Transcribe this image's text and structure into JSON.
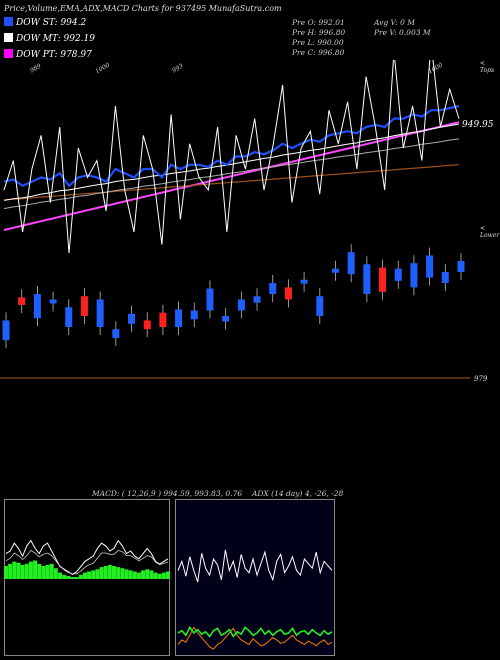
{
  "header": {
    "title": "Price,Volume,EMA,ADX,MACD Charts for 937495 MunafaSutra.com"
  },
  "indicators": [
    {
      "label": "DOW ST: 994.2",
      "color": "#1f4fff"
    },
    {
      "label": "DOW MT: 992.19",
      "color": "#ffffff"
    },
    {
      "label": "DOW PT: 978.97",
      "color": "#ff00ff"
    }
  ],
  "ohlc": {
    "open": "Pre   O: 992.01",
    "high": "Pre   H: 996.80",
    "low": "Pre   L: 990.00",
    "close": "Pre   C: 996.80",
    "avg_volume": "Avg V: 0  M",
    "prev_volume": "Pre   V: 0.003 M"
  },
  "price_axis": {
    "top_label": "< Tops",
    "price_label": "949.95",
    "lower_label": "< Lower",
    "bottom_label": "979"
  },
  "top_annotations": [
    "989",
    "1000",
    "993",
    "1000"
  ],
  "chart_data": [
    {
      "type": "line",
      "panel": "price",
      "series_close": [
        985,
        992,
        975,
        990,
        998,
        982,
        1000,
        970,
        995,
        988,
        992,
        980,
        1005,
        985,
        975,
        998,
        990,
        972,
        1003,
        978,
        996,
        988,
        985,
        1000,
        975,
        998,
        990,
        1002,
        985,
        996,
        1010,
        982,
        995,
        999,
        984,
        1004,
        996,
        1006,
        990,
        1012,
        1000,
        985,
        1018,
        995,
        1005,
        992,
        1020,
        1000,
        1009,
        1002
      ],
      "ema_short": [
        987,
        987.5,
        986,
        987,
        988,
        987.5,
        989,
        986,
        988,
        988.5,
        988,
        987,
        990,
        989,
        988,
        990,
        990,
        988,
        991,
        990,
        991,
        991,
        990.5,
        992,
        991,
        993,
        993,
        994,
        993.5,
        994.5,
        996,
        995,
        996,
        997,
        996.5,
        998,
        998.5,
        999,
        998.5,
        1000,
        1000.5,
        1000,
        1002,
        1002,
        1003,
        1002.5,
        1004,
        1004,
        1004.5,
        1005
      ],
      "ema_mid": [
        983,
        983.4,
        983.6,
        984,
        984.5,
        984.8,
        985.3,
        985.5,
        985.9,
        986.3,
        986.7,
        987,
        987.5,
        987.8,
        988,
        988.4,
        988.8,
        989,
        989.4,
        989.7,
        990,
        990.4,
        990.7,
        991.1,
        991.4,
        991.8,
        992.2,
        992.6,
        993,
        993.3,
        993.8,
        994.1,
        994.5,
        994.9,
        995.2,
        995.6,
        996,
        996.4,
        996.7,
        997.2,
        997.6,
        997.9,
        998.4,
        998.8,
        999.2,
        999.5,
        1000,
        1000.4,
        1000.8,
        1001.2
      ],
      "ema_mid2": [
        982,
        982.4,
        982.7,
        983.1,
        983.5,
        983.8,
        984.2,
        984.5,
        984.9,
        985.2,
        985.6,
        985.9,
        986.3,
        986.6,
        986.9,
        987.3,
        987.6,
        987.9,
        988.3,
        988.6,
        988.9,
        989.3,
        989.6,
        989.9,
        990.3,
        990.6,
        990.9,
        991.3,
        991.6,
        991.9,
        992.3,
        992.6,
        992.9,
        993.3,
        993.6,
        993.9,
        994.3,
        994.6,
        994.9,
        995.3,
        995.6,
        995.9,
        996.3,
        996.6,
        996.9,
        997.3,
        997.6,
        997.9,
        998.3,
        998.6
      ],
      "ema_long": [
        970,
        970.4,
        970.8,
        971.2,
        971.6,
        972,
        972.4,
        972.8,
        973.2,
        973.6,
        974,
        974.4,
        974.8,
        975.2,
        975.6,
        976,
        976.4,
        976.8,
        977.2,
        977.6,
        978,
        978.4,
        978.8,
        979.2,
        979.6,
        980,
        980.4,
        980.8,
        981.2,
        981.6,
        982,
        982.4,
        982.8,
        983.2,
        983.6,
        984,
        984.4,
        984.8,
        985.2,
        985.6,
        986,
        986.4,
        986.8,
        987.2,
        987.6,
        988,
        988.4,
        988.8,
        989.2,
        989.6
      ],
      "pt_line": [
        938,
        939,
        940,
        941,
        942,
        943,
        944,
        945,
        946,
        947,
        948,
        949,
        950,
        951,
        952,
        953,
        954,
        955,
        956,
        957,
        958,
        959,
        960,
        961,
        962,
        963,
        964,
        965,
        966,
        967,
        968,
        969,
        970,
        971,
        972,
        973,
        974,
        975,
        976,
        977,
        978,
        979,
        980,
        981,
        982,
        983,
        984,
        985,
        986,
        987
      ]
    },
    {
      "type": "bar",
      "panel": "candles",
      "bars": [
        {
          "o": 0.18,
          "c": 0.36,
          "up": true
        },
        {
          "o": 0.5,
          "c": 0.57,
          "up": false
        },
        {
          "o": 0.38,
          "c": 0.6,
          "up": true
        },
        {
          "o": 0.52,
          "c": 0.55,
          "up": true
        },
        {
          "o": 0.3,
          "c": 0.48,
          "up": true
        },
        {
          "o": 0.4,
          "c": 0.58,
          "up": false
        },
        {
          "o": 0.3,
          "c": 0.55,
          "up": true
        },
        {
          "o": 0.2,
          "c": 0.28,
          "up": true
        },
        {
          "o": 0.33,
          "c": 0.42,
          "up": true
        },
        {
          "o": 0.28,
          "c": 0.36,
          "up": false
        },
        {
          "o": 0.3,
          "c": 0.43,
          "up": false
        },
        {
          "o": 0.3,
          "c": 0.46,
          "up": true
        },
        {
          "o": 0.37,
          "c": 0.45,
          "up": true
        },
        {
          "o": 0.45,
          "c": 0.65,
          "up": true
        },
        {
          "o": 0.35,
          "c": 0.4,
          "up": true
        },
        {
          "o": 0.45,
          "c": 0.55,
          "up": true
        },
        {
          "o": 0.52,
          "c": 0.58,
          "up": true
        },
        {
          "o": 0.6,
          "c": 0.7,
          "up": true
        },
        {
          "o": 0.55,
          "c": 0.66,
          "up": false
        },
        {
          "o": 0.7,
          "c": 0.73,
          "up": true
        },
        {
          "o": 0.4,
          "c": 0.58,
          "up": true
        },
        {
          "o": 0.8,
          "c": 0.83,
          "up": true
        },
        {
          "o": 0.78,
          "c": 0.98,
          "up": true
        },
        {
          "o": 0.6,
          "c": 0.87,
          "up": true
        },
        {
          "o": 0.62,
          "c": 0.84,
          "up": false
        },
        {
          "o": 0.72,
          "c": 0.83,
          "up": true
        },
        {
          "o": 0.66,
          "c": 0.88,
          "up": true
        },
        {
          "o": 0.75,
          "c": 0.95,
          "up": true
        },
        {
          "o": 0.7,
          "c": 0.8,
          "up": true
        },
        {
          "o": 0.8,
          "c": 0.9,
          "up": true
        }
      ]
    },
    {
      "type": "area",
      "panel": "macd",
      "title": "MACD: ( 12,26,9 ) 994.59, 993.83, 0.76",
      "values": [
        0.5,
        0.6,
        0.7,
        0.65,
        0.55,
        0.6,
        0.7,
        0.75,
        0.6,
        0.5,
        0.55,
        0.6,
        0.4,
        0.2,
        0.1,
        0.05,
        0.0,
        -0.05,
        0.1,
        0.2,
        0.25,
        0.3,
        0.35,
        0.45,
        0.5,
        0.55,
        0.5,
        0.45,
        0.4,
        0.35,
        0.3,
        0.25,
        0.2,
        0.3,
        0.35,
        0.3,
        0.2,
        0.15,
        0.2,
        0.25
      ],
      "line1": [
        0.9,
        1.0,
        1.3,
        1.1,
        0.8,
        1.2,
        1.4,
        1.1,
        0.9,
        1.2,
        1.3,
        1.0,
        0.7,
        0.4,
        0.3,
        0.2,
        0.1,
        0.2,
        0.4,
        0.6,
        0.7,
        0.8,
        1.1,
        1.3,
        1.2,
        1.0,
        1.1,
        1.4,
        1.2,
        0.9,
        1.0,
        0.8,
        0.7,
        0.9,
        1.1,
        0.9,
        0.6,
        0.5,
        0.6,
        0.7
      ],
      "line2": [
        0.7,
        0.8,
        1.0,
        0.9,
        0.75,
        0.9,
        1.1,
        1.0,
        0.85,
        0.95,
        1.0,
        0.9,
        0.7,
        0.5,
        0.35,
        0.25,
        0.2,
        0.2,
        0.3,
        0.45,
        0.55,
        0.6,
        0.8,
        1.0,
        1.0,
        0.95,
        0.95,
        1.1,
        1.05,
        0.9,
        0.9,
        0.8,
        0.7,
        0.8,
        0.9,
        0.85,
        0.65,
        0.55,
        0.6,
        0.65
      ]
    },
    {
      "type": "line",
      "panel": "adx",
      "title": "ADX   (14  day) 4, -26, -28",
      "adx": [
        0.7,
        0.78,
        0.65,
        0.82,
        0.7,
        0.6,
        0.85,
        0.72,
        0.66,
        0.8,
        0.75,
        0.62,
        0.88,
        0.7,
        0.78,
        0.64,
        0.84,
        0.72,
        0.68,
        0.8,
        0.66,
        0.76,
        0.86,
        0.7,
        0.62,
        0.78,
        0.84,
        0.68,
        0.74,
        0.82,
        0.7,
        0.66,
        0.8,
        0.76,
        0.72,
        0.86,
        0.68,
        0.78,
        0.74,
        0.7
      ],
      "plus_di": [
        0.2,
        0.22,
        0.18,
        0.25,
        0.2,
        0.23,
        0.19,
        0.21,
        0.17,
        0.22,
        0.24,
        0.18,
        0.2,
        0.23,
        0.17,
        0.21,
        0.19,
        0.25,
        0.22,
        0.18,
        0.2,
        0.24,
        0.19,
        0.22,
        0.18,
        0.21,
        0.23,
        0.19,
        0.2,
        0.24,
        0.18,
        0.21,
        0.22,
        0.19,
        0.23,
        0.2,
        0.18,
        0.22,
        0.19,
        0.21
      ],
      "minus_di": [
        0.1,
        0.14,
        0.12,
        0.18,
        0.25,
        0.2,
        0.16,
        0.12,
        0.08,
        0.06,
        0.1,
        0.12,
        0.16,
        0.2,
        0.24,
        0.18,
        0.14,
        0.12,
        0.1,
        0.15,
        0.12,
        0.09,
        0.1,
        0.13,
        0.16,
        0.14,
        0.11,
        0.12,
        0.15,
        0.18,
        0.14,
        0.12,
        0.1,
        0.13,
        0.11,
        0.09,
        0.12,
        0.14,
        0.1,
        0.12
      ]
    }
  ]
}
